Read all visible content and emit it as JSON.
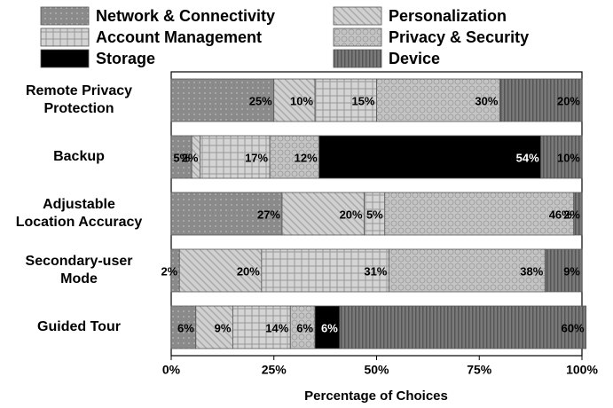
{
  "chart_data": {
    "type": "stacked_barh",
    "categories": [
      "Remote Privacy\nProtection",
      "Backup",
      "Adjustable\nLocation Accuracy",
      "Secondary-user\nMode",
      "Guided Tour"
    ],
    "x_label": "Percentage of Choices",
    "xlim": [
      0,
      100
    ],
    "xticks": [
      {
        "value": 0,
        "label": "0%"
      },
      {
        "value": 25,
        "label": "25%"
      },
      {
        "value": 50,
        "label": "50%"
      },
      {
        "value": 75,
        "label": "75%"
      },
      {
        "value": 100,
        "label": "100%"
      }
    ],
    "legend": "top",
    "series": [
      {
        "name": "Network & Connectivity",
        "color": "#8a8a8a",
        "pattern": "dots",
        "values": [
          25,
          5,
          27,
          2,
          6
        ],
        "value_labels": [
          "25%",
          "5%",
          "27%",
          "2%",
          "6%"
        ]
      },
      {
        "name": "Personalization",
        "color": "#d0d0d0",
        "pattern": "diagonal",
        "values": [
          10,
          2,
          20,
          20,
          9
        ],
        "value_labels": [
          "10%",
          "2%",
          "20%",
          "20%",
          "9%"
        ]
      },
      {
        "name": "Account Management",
        "color": "#d4d4d4",
        "pattern": "grid",
        "values": [
          15,
          17,
          5,
          31,
          14
        ],
        "value_labels": [
          "15%",
          "17%",
          "5%",
          "31%",
          "14%"
        ]
      },
      {
        "name": "Privacy & Security",
        "color": "#c4c4c4",
        "pattern": "circles",
        "values": [
          30,
          12,
          46,
          38,
          6
        ],
        "value_labels": [
          "30%",
          "12%",
          "46%",
          "38%",
          "6%"
        ]
      },
      {
        "name": "Storage",
        "color": "#000000",
        "pattern": "solid",
        "values": [
          0,
          54,
          0,
          0,
          6
        ],
        "value_labels": [
          null,
          "54%",
          null,
          null,
          "6%"
        ]
      },
      {
        "name": "Device",
        "color": "#7a7a7a",
        "pattern": "vertical",
        "values": [
          20,
          10,
          2,
          9,
          60
        ],
        "value_labels": [
          "20%",
          "10%",
          "2%",
          "9%",
          "60%"
        ]
      }
    ]
  }
}
